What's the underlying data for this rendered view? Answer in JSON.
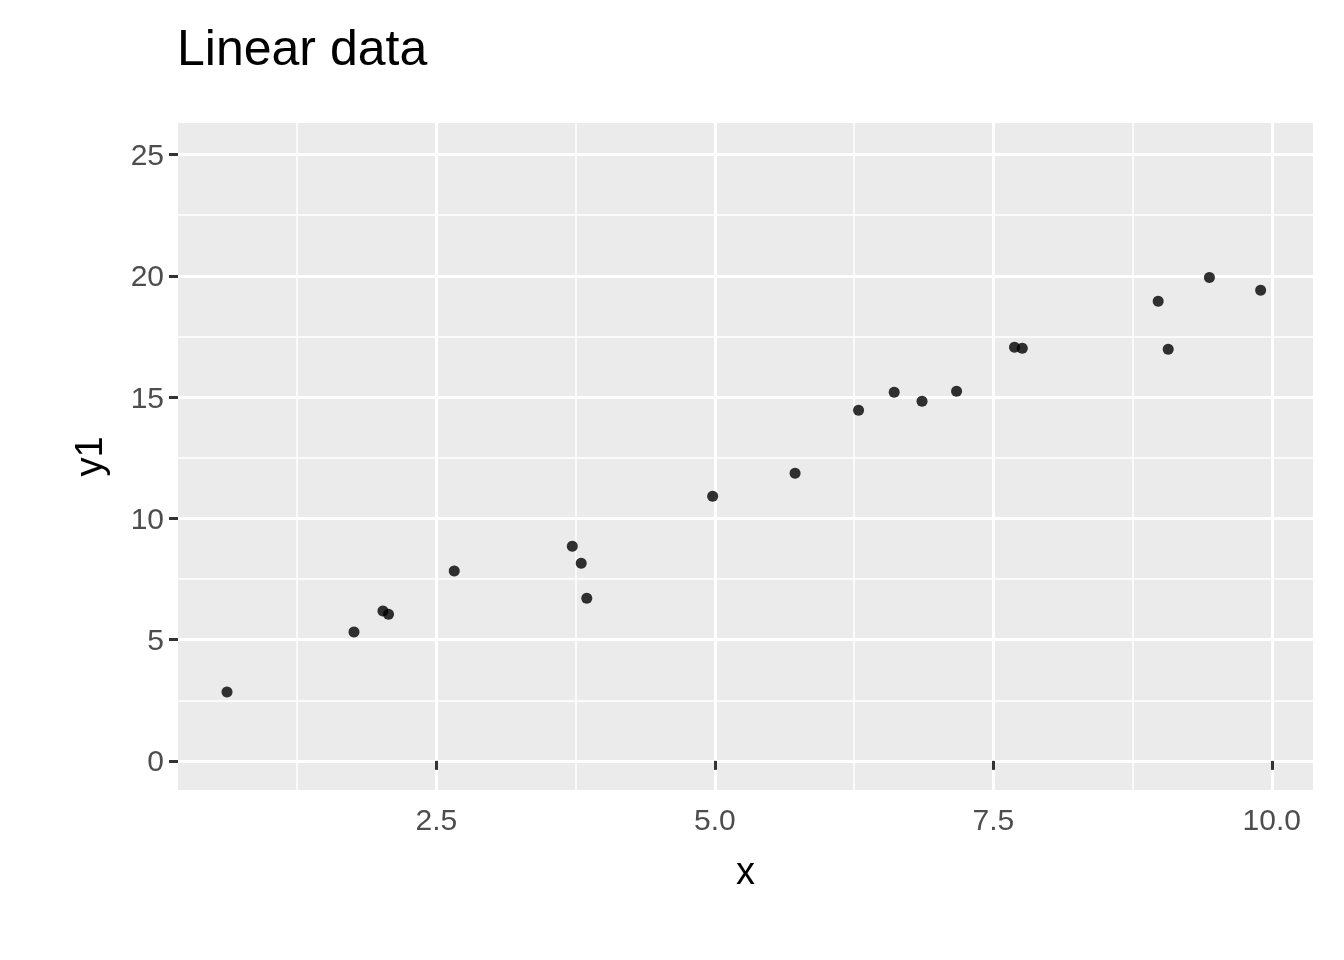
{
  "chart_data": {
    "type": "scatter",
    "title": "Linear data",
    "xlabel": "x",
    "ylabel": "y1",
    "x": [
      0.62,
      1.76,
      2.02,
      2.07,
      2.66,
      3.72,
      3.8,
      3.85,
      4.98,
      5.72,
      6.29,
      6.61,
      6.86,
      7.17,
      7.69,
      7.76,
      8.98,
      9.07,
      9.44,
      9.9
    ],
    "values": [
      2.84,
      5.31,
      6.18,
      6.05,
      7.83,
      8.85,
      8.15,
      6.71,
      10.91,
      11.86,
      14.46,
      15.2,
      14.83,
      15.24,
      17.05,
      17.01,
      18.95,
      16.97,
      19.93,
      19.4
    ],
    "color": "#000000",
    "marker": "circle",
    "grid": true,
    "xlim": [
      0.18,
      10.37
    ],
    "xticks": [
      {
        "value": 2.5,
        "label": "2.5"
      },
      {
        "value": 5,
        "label": "5.0"
      },
      {
        "value": 7.5,
        "label": "7.5"
      },
      {
        "value": 10,
        "label": "10.0"
      }
    ],
    "ylim": [
      -1.2,
      26.3
    ],
    "yticks": [
      0,
      5,
      10,
      15,
      20,
      25
    ]
  }
}
